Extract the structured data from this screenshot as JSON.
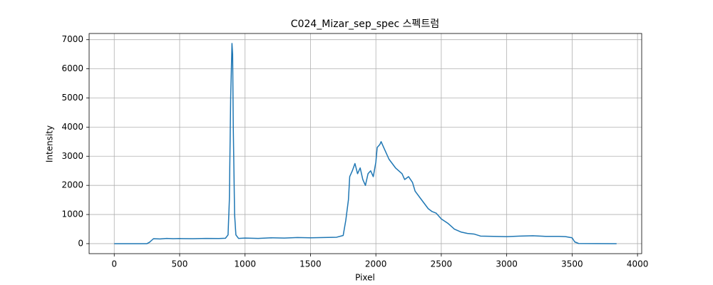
{
  "chart_data": {
    "type": "line",
    "title": "C024_Mizar_sep_spec 스펙트럼",
    "x_label": "Pixel",
    "y_label": "Intensity",
    "x": [
      0,
      250,
      270,
      300,
      350,
      400,
      450,
      500,
      600,
      700,
      800,
      850,
      870,
      880,
      890,
      900,
      905,
      910,
      920,
      930,
      950,
      1000,
      1100,
      1200,
      1300,
      1400,
      1500,
      1600,
      1700,
      1750,
      1770,
      1790,
      1800,
      1820,
      1840,
      1860,
      1880,
      1900,
      1920,
      1940,
      1960,
      1980,
      2000,
      2010,
      2030,
      2040,
      2060,
      2080,
      2100,
      2150,
      2200,
      2220,
      2250,
      2280,
      2300,
      2350,
      2400,
      2430,
      2460,
      2500,
      2550,
      2600,
      2650,
      2700,
      2750,
      2800,
      2900,
      3000,
      3100,
      3200,
      3300,
      3400,
      3450,
      3500,
      3520,
      3550,
      3840
    ],
    "values": [
      0,
      0,
      50,
      170,
      160,
      180,
      170,
      175,
      170,
      180,
      175,
      185,
      300,
      1500,
      5000,
      6870,
      6500,
      4000,
      1000,
      300,
      180,
      190,
      180,
      200,
      190,
      210,
      200,
      210,
      220,
      280,
      800,
      1500,
      2300,
      2500,
      2750,
      2400,
      2600,
      2200,
      2000,
      2400,
      2500,
      2300,
      2800,
      3300,
      3400,
      3500,
      3300,
      3100,
      2900,
      2600,
      2400,
      2200,
      2300,
      2100,
      1800,
      1500,
      1200,
      1100,
      1050,
      850,
      700,
      500,
      400,
      350,
      330,
      260,
      250,
      240,
      260,
      270,
      250,
      250,
      240,
      200,
      60,
      5,
      0
    ],
    "color": "#1f77b4",
    "xlim": [
      -192,
      4032
    ],
    "ylim": [
      -343.5,
      7213
    ],
    "xticks": [
      0,
      500,
      1000,
      1500,
      2000,
      2500,
      3000,
      3500,
      4000
    ],
    "yticks": [
      0,
      1000,
      2000,
      3000,
      4000,
      5000,
      6000,
      7000
    ],
    "grid": true
  }
}
